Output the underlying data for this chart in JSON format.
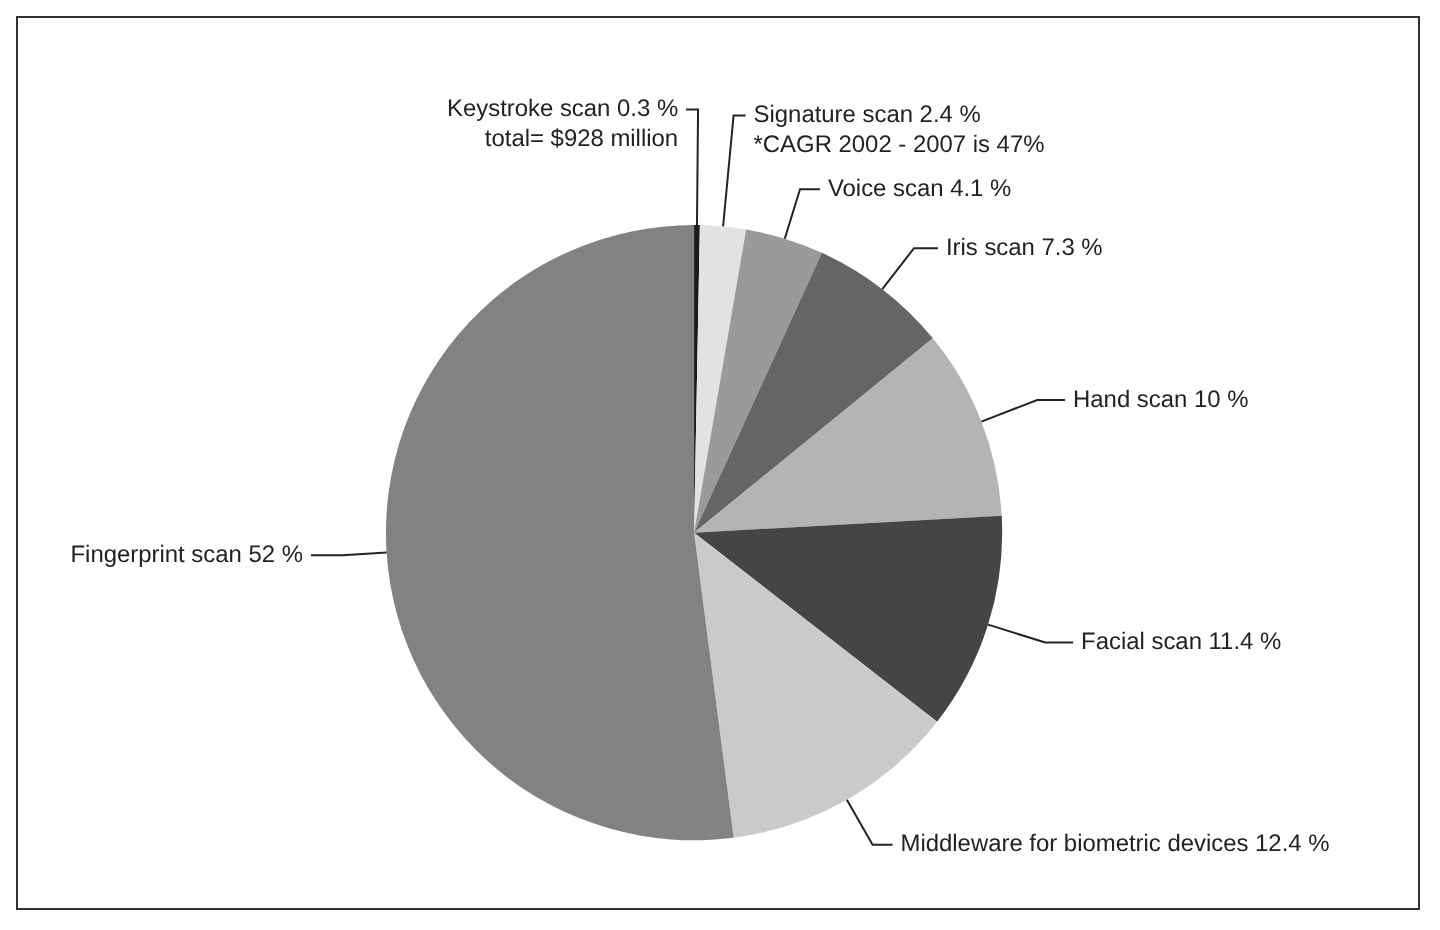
{
  "chart_data": {
    "type": "pie",
    "categories": [
      "Keystroke scan",
      "Signature scan",
      "Voice scan",
      "Iris scan",
      "Hand scan",
      "Facial scan",
      "Middleware for biometric devices",
      "Fingerprint scan"
    ],
    "values": [
      0.3,
      2.4,
      4.1,
      7.3,
      10,
      11.4,
      12.4,
      52
    ],
    "value_labels": [
      "0.3 %",
      "2.4 %",
      "4.1 %",
      "7.3 %",
      "10 %",
      "11.4 %",
      "12.4 %",
      "52 %"
    ],
    "colors": [
      "#1a1a1a",
      "#e2e2e2",
      "#9a9a9a",
      "#656565",
      "#b4b4b4",
      "#454545",
      "#cacaca",
      "#828282"
    ],
    "annotations": [
      "total= $928 million",
      "*CAGR 2002 - 2007 is 47%"
    ],
    "legend": false
  }
}
